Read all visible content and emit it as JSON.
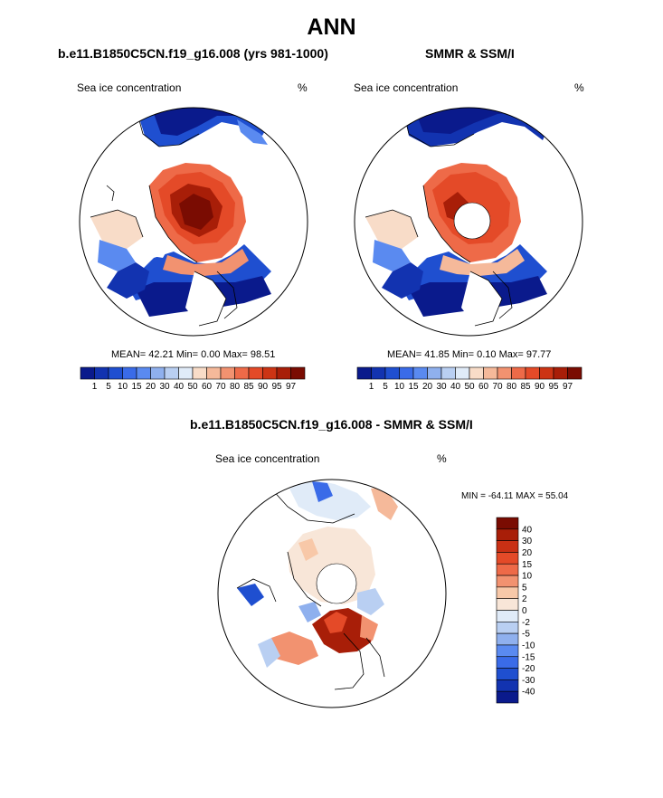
{
  "chart_data": [
    {
      "type": "heatmap",
      "title": "ANN",
      "subtitle": "b.e11.B1850C5CN.f19_g16.008 (yrs 981-1000)",
      "variable": "Sea ice concentration",
      "units": "%",
      "mean_label": "MEAN=",
      "mean": "42.21",
      "min_label": "Min=",
      "min": "0.00",
      "max_label": "Max=",
      "max": "98.51",
      "levels": [
        "1",
        "5",
        "10",
        "15",
        "20",
        "30",
        "40",
        "50",
        "60",
        "70",
        "80",
        "85",
        "90",
        "95",
        "97"
      ]
    },
    {
      "type": "heatmap",
      "subtitle": "SMMR & SSM/I",
      "variable": "Sea ice concentration",
      "units": "%",
      "mean_label": "MEAN=",
      "mean": "41.85",
      "min_label": "Min=",
      "min": "0.10",
      "max_label": "Max=",
      "max": "97.77",
      "levels": [
        "1",
        "5",
        "10",
        "15",
        "20",
        "30",
        "40",
        "50",
        "60",
        "70",
        "80",
        "85",
        "90",
        "95",
        "97"
      ]
    },
    {
      "type": "heatmap",
      "subtitle": "b.e11.B1850C5CN.f19_g16.008 - SMMR & SSM/I",
      "variable": "Sea ice concentration",
      "units": "%",
      "minmax_text": "MIN = -64.11 MAX =  55.04",
      "levels": [
        "40",
        "30",
        "20",
        "15",
        "10",
        "5",
        "2",
        "0",
        "-2",
        "-5",
        "-10",
        "-15",
        "-20",
        "-30",
        "-40"
      ]
    }
  ],
  "colors": {
    "seq": [
      "#0a1a8c",
      "#1233b0",
      "#1f4fd0",
      "#3a6be8",
      "#5a8af0",
      "#8fb0ee",
      "#b9cff2",
      "#e0ebf8",
      "#f8dcc8",
      "#f5b99a",
      "#f29270",
      "#ee6a48",
      "#e44a28",
      "#cc3414",
      "#a81e08",
      "#7a0c02"
    ],
    "diff": [
      "#7a0c02",
      "#a81e08",
      "#c93014",
      "#e44a28",
      "#ee6a48",
      "#f29270",
      "#f8c8a8",
      "#f8e6d8",
      "#e0ebf8",
      "#b9cff2",
      "#8fb0ee",
      "#5a8af0",
      "#3a6be8",
      "#1f4fd0",
      "#1233b0",
      "#0a1a8c"
    ]
  }
}
